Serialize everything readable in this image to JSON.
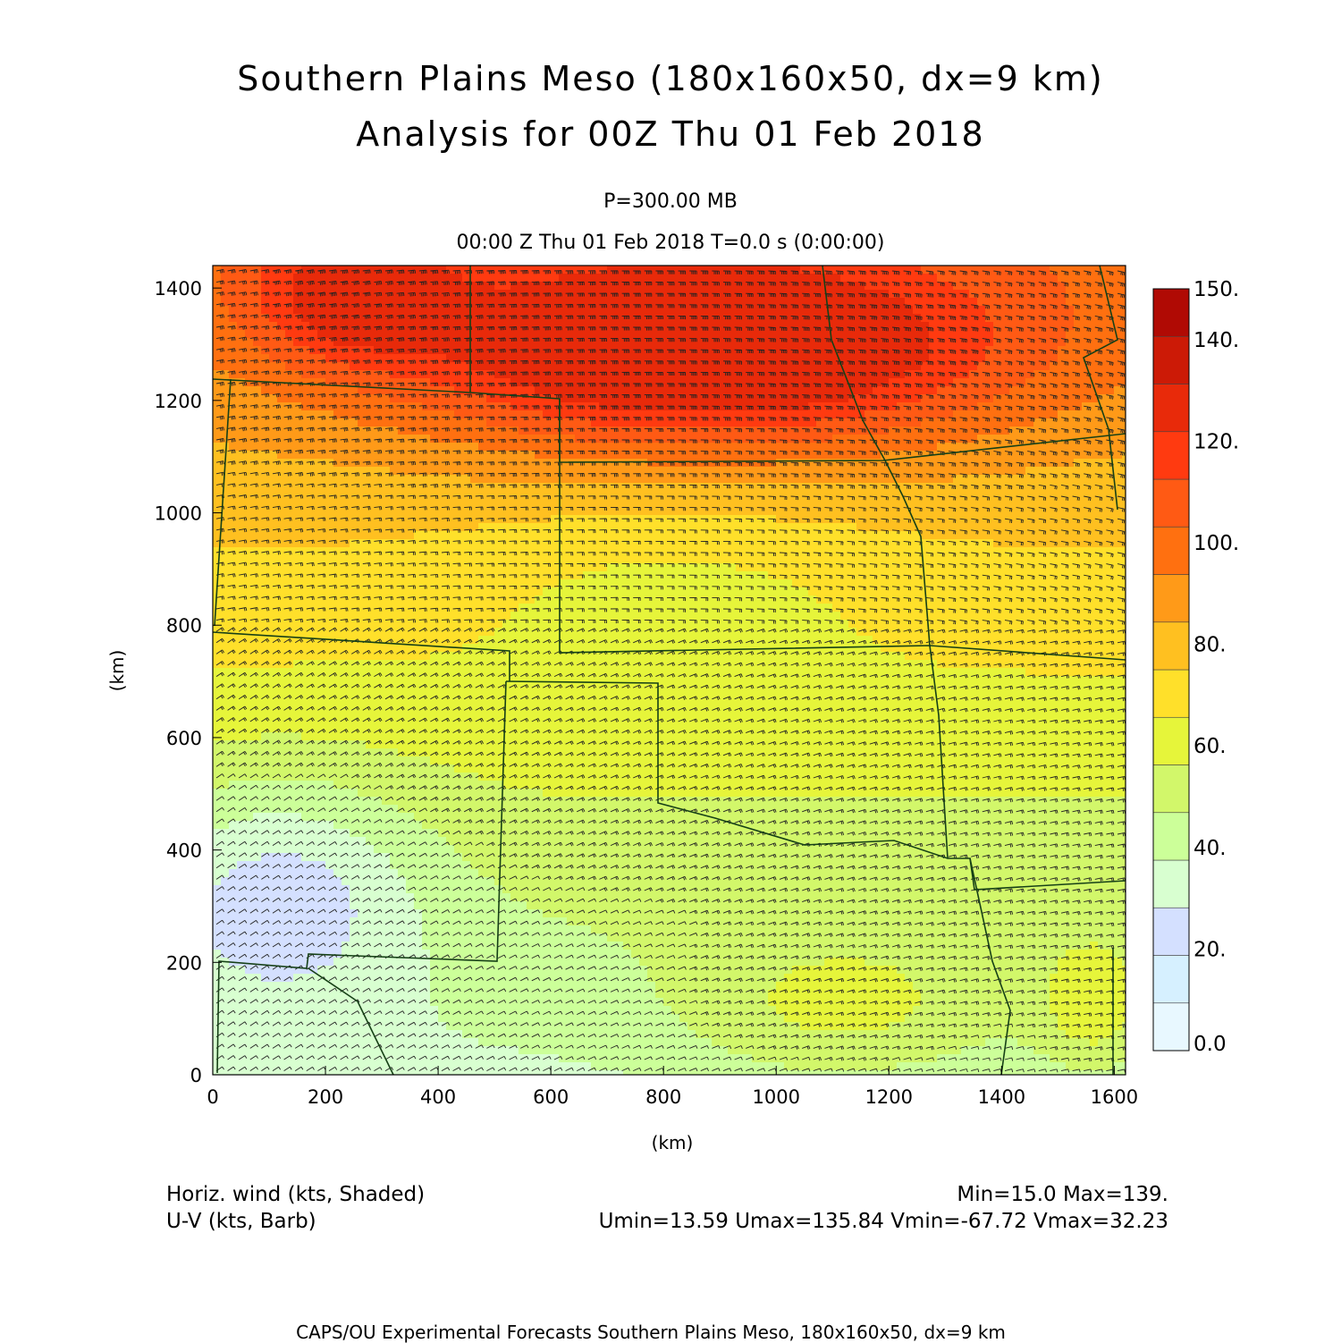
{
  "title": "Southern Plains Meso (180x160x50, dx=9 km)",
  "subtitle": "Analysis for 00Z Thu 01 Feb 2018",
  "level": "P=300.00 MB",
  "time": "00:00 Z Thu 01 Feb 2018    T=0.0 s (0:00:00)",
  "field_label": "Horiz. wind (kts, Shaded)",
  "vector_label": "U-V (kts, Barb)",
  "minmax": "Min=15.0 Max=139.",
  "uv_stats": "Umin=13.59 Umax=135.84 Vmin=-67.72 Vmax=32.23",
  "footer": "CAPS/OU Experimental Forecasts  Southern Plains Meso, 180x160x50, dx=9 km",
  "axes": {
    "xlabel": "(km)",
    "ylabel": "(km)",
    "xlim": [
      0,
      1620
    ],
    "ylim": [
      0,
      1440
    ],
    "xticks": [
      0,
      200,
      400,
      600,
      800,
      1000,
      1200,
      1400,
      1600
    ],
    "yticks": [
      0,
      200,
      400,
      600,
      800,
      1000,
      1200,
      1400
    ]
  },
  "colorbar": {
    "labels": [
      "150.",
      "140.",
      "120.",
      "100.",
      "80.",
      "60.",
      "40.",
      "20.",
      "0.0"
    ],
    "levels": [
      0,
      10,
      20,
      30,
      40,
      50,
      60,
      70,
      80,
      90,
      100,
      110,
      120,
      130,
      140,
      150
    ],
    "colors": [
      "#e8f8ff",
      "#d6f0ff",
      "#d4e0ff",
      "#d8ffd0",
      "#ccff99",
      "#d2f76a",
      "#e6f53a",
      "#ffe02a",
      "#ffc020",
      "#ff9a18",
      "#ff7010",
      "#ff5a14",
      "#ff3a10",
      "#e82a0a",
      "#cc1a06",
      "#b00a04"
    ]
  }
}
